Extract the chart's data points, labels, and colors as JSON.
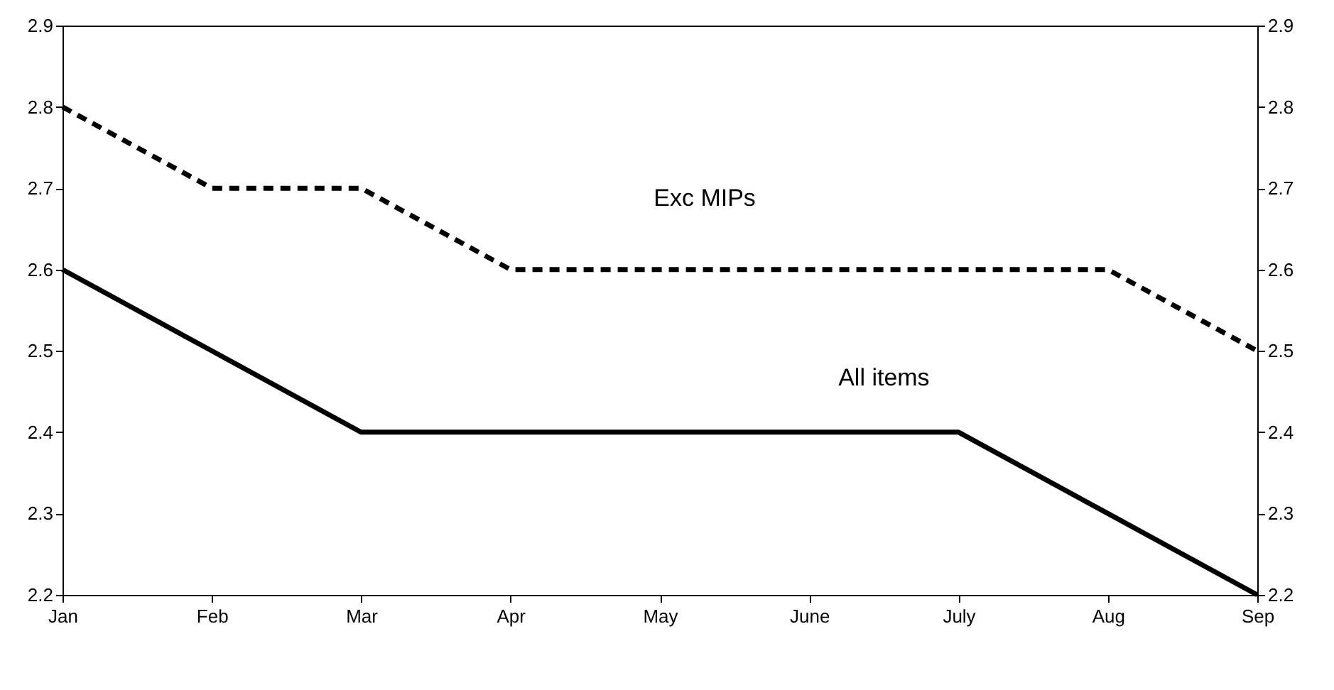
{
  "chart_data": {
    "type": "line",
    "categories": [
      "Jan",
      "Feb",
      "Mar",
      "Apr",
      "May",
      "June",
      "July",
      "Aug",
      "Sep"
    ],
    "series": [
      {
        "name": "Exc MIPs",
        "color": "#000000",
        "line_style": "dashed",
        "values": [
          2.8,
          2.7,
          2.7,
          2.6,
          2.6,
          2.6,
          2.6,
          2.6,
          2.5
        ]
      },
      {
        "name": "All items",
        "color": "#000000",
        "line_style": "solid",
        "values": [
          2.6,
          2.5,
          2.4,
          2.4,
          2.4,
          2.4,
          2.4,
          2.3,
          2.2
        ]
      }
    ],
    "ylim": [
      2.2,
      2.9
    ],
    "yticks": [
      2.2,
      2.3,
      2.4,
      2.5,
      2.6,
      2.7,
      2.8,
      2.9
    ],
    "y2lim": [
      2.2,
      2.9
    ],
    "y2ticks": [
      2.2,
      2.3,
      2.4,
      2.5,
      2.6,
      2.7,
      2.8,
      2.9
    ],
    "grid": false,
    "marker": "none"
  }
}
